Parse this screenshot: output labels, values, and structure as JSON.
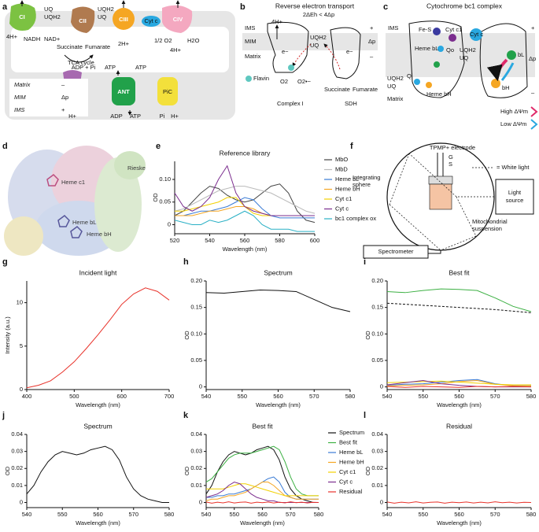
{
  "panel_labels": [
    "a",
    "b",
    "c",
    "d",
    "e",
    "f",
    "g",
    "h",
    "i",
    "j",
    "k",
    "l"
  ],
  "panel_a": {
    "texts": [
      "CI",
      "CII",
      "CIII",
      "CIV",
      "Cyt c",
      "UQ",
      "UQH2",
      "UQH2",
      "UQ",
      "4H+",
      "NADH",
      "NAD+",
      "Succinate",
      "Fumarate",
      "TCA cycle",
      "2H+",
      "1/2 O2",
      "H2O",
      "4H+",
      "ADP + Pi",
      "ATP",
      "ATP",
      "FoF1",
      "ANT",
      "PiC",
      "H+",
      "ADP",
      "ATP",
      "Pi",
      "H+",
      "Matrix",
      "MIM",
      "IMS",
      "–",
      "Δp",
      "+"
    ]
  },
  "panel_b": {
    "texts": [
      "Reverse electron transport",
      "2ΔEh < 4Δp",
      "IMS",
      "MIM",
      "Matrix",
      "4H+",
      "UQH2",
      "UQ",
      "e−",
      "e−",
      "O2",
      "O2•−",
      "Flavin",
      "Succinate",
      "Fumarate",
      "Complex I",
      "SDH",
      "+",
      "Δp",
      "–"
    ]
  },
  "panel_c": {
    "texts": [
      "Cytochrome bc1 complex",
      "IMS",
      "Fe-S",
      "Cyt c1",
      "Cyt c",
      "Heme bL",
      "Qo",
      "UQH2",
      "UQ",
      "UQH2",
      "UQ",
      "Qi",
      "Heme bH",
      "Matrix",
      "bL",
      "bH",
      "+",
      "Δp",
      "–",
      "High ΔΨm",
      "Low ΔΨm"
    ]
  },
  "panel_d": {
    "texts": [
      "Rieske",
      "Heme c1",
      "Heme bL",
      "Heme bH"
    ]
  },
  "panel_f": {
    "texts": [
      "TPMP+ electrode",
      "G",
      "S",
      "= White light",
      "Integrating",
      "sphere",
      "Light",
      "source",
      "Mitochondrial",
      "suspension",
      "Spectrometer"
    ]
  },
  "chart_data": [
    {
      "type": "line",
      "title": "Reference library",
      "xlabel": "Wavelength (nm)",
      "ylabel": "OD",
      "x": [
        520,
        525,
        530,
        535,
        540,
        545,
        550,
        555,
        560,
        565,
        570,
        575,
        580,
        585,
        590,
        595,
        600
      ],
      "xlim": [
        520,
        600
      ],
      "xticks": [
        520,
        540,
        560,
        580,
        600
      ],
      "ylim": [
        -0.02,
        0.14
      ],
      "yticks": [
        0,
        0.05,
        {
          "value": 0.1,
          "label": "0.10"
        }
      ],
      "legend": "right",
      "series": [
        {
          "name": "MbO",
          "color": "#444444",
          "values": [
            0.02,
            0.03,
            0.05,
            0.07,
            0.085,
            0.08,
            0.065,
            0.055,
            0.05,
            0.055,
            0.07,
            0.085,
            0.09,
            0.07,
            0.03,
            0.01,
            0.005
          ]
        },
        {
          "name": "MbD",
          "color": "#bbbbbb",
          "values": [
            0.03,
            0.035,
            0.045,
            0.055,
            0.065,
            0.075,
            0.08,
            0.085,
            0.085,
            0.08,
            0.075,
            0.07,
            0.06,
            0.05,
            0.04,
            0.03,
            0.025
          ]
        },
        {
          "name": "Heme bL",
          "color": "#3a7bd5",
          "values": [
            0.02,
            0.02,
            0.025,
            0.03,
            0.03,
            0.035,
            0.04,
            0.05,
            0.06,
            0.055,
            0.035,
            0.02,
            0.015,
            0.015,
            0.015,
            0.015,
            0.015
          ]
        },
        {
          "name": "Heme bH",
          "color": "#f5a623",
          "values": [
            0.02,
            0.02,
            0.02,
            0.025,
            0.03,
            0.03,
            0.035,
            0.04,
            0.04,
            0.035,
            0.025,
            0.02,
            0.02,
            0.02,
            0.02,
            0.02,
            0.02
          ]
        },
        {
          "name": "Cyt c1",
          "color": "#f2d000",
          "values": [
            0.03,
            0.03,
            0.035,
            0.04,
            0.045,
            0.05,
            0.06,
            0.06,
            0.04,
            0.025,
            0.02,
            0.02,
            0.02,
            0.02,
            0.02,
            0.02,
            0.02
          ]
        },
        {
          "name": "Cyt c",
          "color": "#7b2d8e",
          "values": [
            0.07,
            0.04,
            0.03,
            0.04,
            0.06,
            0.1,
            0.13,
            0.07,
            0.04,
            0.03,
            0.025,
            0.02,
            0.02,
            0.02,
            0.02,
            0.02,
            0.02
          ]
        },
        {
          "name": "bc1 complex ox",
          "color": "#2ab0c5",
          "values": [
            0.01,
            0.005,
            0,
            0,
            0.01,
            0.005,
            0.01,
            0.02,
            0.03,
            0.02,
            0,
            -0.01,
            -0.01,
            -0.01,
            -0.015,
            -0.015,
            -0.015
          ]
        }
      ]
    },
    {
      "type": "line",
      "title": "Incident light",
      "xlabel": "Wavelength (nm)",
      "ylabel": "Intensity (a.u.)",
      "x": [
        400,
        425,
        450,
        475,
        500,
        525,
        550,
        575,
        600,
        625,
        650,
        675,
        700
      ],
      "xlim": [
        400,
        700
      ],
      "xticks": [
        400,
        500,
        600,
        700
      ],
      "ylim": [
        0,
        12.5
      ],
      "yticks": [
        0,
        5,
        10
      ],
      "series": [
        {
          "color": "#e8322a",
          "values": [
            0.2,
            0.5,
            1,
            2,
            3.2,
            4.7,
            6.3,
            8,
            9.8,
            11,
            11.7,
            11.3,
            10.3
          ]
        }
      ]
    },
    {
      "type": "line",
      "title": "Spectrum",
      "xlabel": "Wavelength (nm)",
      "ylabel": "OD",
      "x": [
        540,
        545,
        550,
        555,
        560,
        565,
        570,
        575,
        580
      ],
      "xlim": [
        540,
        580
      ],
      "xticks": [
        540,
        550,
        560,
        570,
        580
      ],
      "ylim": [
        -0.005,
        0.2
      ],
      "yticks": [
        0,
        0.05,
        {
          "value": 0.1,
          "label": "0.10"
        },
        0.15,
        {
          "value": 0.2,
          "label": "0.20"
        }
      ],
      "series": [
        {
          "color": "#111111",
          "values": [
            0.178,
            0.177,
            0.18,
            0.183,
            0.182,
            0.18,
            0.165,
            0.15,
            0.142
          ]
        }
      ]
    },
    {
      "type": "line",
      "title": "Best fit",
      "xlabel": "Wavelength (nm)",
      "ylabel": "OD",
      "x": [
        540,
        545,
        550,
        555,
        560,
        565,
        570,
        575,
        580
      ],
      "xlim": [
        540,
        580
      ],
      "xticks": [
        540,
        550,
        560,
        570,
        580
      ],
      "ylim": [
        -0.005,
        0.2
      ],
      "yticks": [
        0,
        0.05,
        {
          "value": 0.1,
          "label": "0.10"
        },
        0.15,
        {
          "value": 0.2,
          "label": "0.20"
        }
      ],
      "series": [
        {
          "color": "#3cb043",
          "values": [
            0.18,
            0.178,
            0.182,
            0.185,
            0.184,
            0.182,
            0.168,
            0.152,
            0.142
          ]
        },
        {
          "color": "#111111",
          "dash": true,
          "values": [
            0.158,
            0.156,
            0.154,
            0.152,
            0.15,
            0.148,
            0.146,
            0.143,
            0.14
          ]
        },
        {
          "color": "#3a7bd5",
          "values": [
            0.003,
            0.005,
            0.006,
            0.009,
            0.012,
            0.014,
            0.006,
            0.002,
            0.002
          ]
        },
        {
          "color": "#f5a623",
          "values": [
            0.002,
            0.003,
            0.004,
            0.006,
            0.01,
            0.012,
            0.005,
            0.002,
            0.002
          ]
        },
        {
          "color": "#f2d000",
          "values": [
            0.008,
            0.009,
            0.01,
            0.011,
            0.009,
            0.007,
            0.005,
            0.004,
            0.004
          ]
        },
        {
          "color": "#7b2d8e",
          "values": [
            0.004,
            0.008,
            0.012,
            0.006,
            0.003,
            0.001,
            0,
            0,
            0
          ]
        },
        {
          "color": "#e8322a",
          "values": [
            0.001,
            -0.001,
            0.001,
            0,
            -0.001,
            0.001,
            0,
            0.001,
            0
          ]
        }
      ]
    },
    {
      "type": "line",
      "title": "Spectrum",
      "xlabel": "Wavelength (nm)",
      "ylabel": "OD",
      "x": [
        540,
        542,
        544,
        546,
        548,
        550,
        552,
        554,
        556,
        558,
        560,
        562,
        564,
        566,
        568,
        570,
        572,
        574,
        576,
        578,
        580
      ],
      "xlim": [
        540,
        580
      ],
      "xticks": [
        540,
        550,
        560,
        570,
        580
      ],
      "ylim": [
        -0.003,
        0.04
      ],
      "yticks": [
        0,
        0.01,
        0.02,
        0.03,
        0.04
      ],
      "series": [
        {
          "color": "#111111",
          "values": [
            0.005,
            0.01,
            0.018,
            0.024,
            0.028,
            0.03,
            0.029,
            0.028,
            0.029,
            0.031,
            0.032,
            0.033,
            0.031,
            0.025,
            0.015,
            0.008,
            0.004,
            0.002,
            0.001,
            0,
            0
          ]
        }
      ]
    },
    {
      "type": "line",
      "title": "Best fit",
      "xlabel": "Wavelength (nm)",
      "ylabel": "OD",
      "x": [
        540,
        542,
        544,
        546,
        548,
        550,
        552,
        554,
        556,
        558,
        560,
        562,
        564,
        566,
        568,
        570,
        572,
        574,
        576,
        578,
        580
      ],
      "xlim": [
        540,
        580
      ],
      "xticks": [
        540,
        550,
        560,
        570,
        580
      ],
      "ylim": [
        -0.003,
        0.04
      ],
      "yticks": [
        0,
        0.01,
        0.02,
        0.03,
        0.04
      ],
      "legend": "right",
      "series": [
        {
          "name": "Spectrum",
          "color": "#111111",
          "values": [
            0.005,
            0.01,
            0.018,
            0.024,
            0.028,
            0.03,
            0.029,
            0.028,
            0.029,
            0.031,
            0.032,
            0.033,
            0.031,
            0.025,
            0.015,
            0.008,
            0.004,
            0.002,
            0.001,
            0,
            0
          ]
        },
        {
          "name": "Best fit",
          "color": "#3cb043",
          "values": [
            0.012,
            0.014,
            0.018,
            0.022,
            0.026,
            0.028,
            0.029,
            0.029,
            0.029,
            0.03,
            0.031,
            0.032,
            0.033,
            0.031,
            0.024,
            0.015,
            0.008,
            0.005,
            0.004,
            0.004,
            0.004
          ]
        },
        {
          "name": "Heme bL",
          "color": "#3a7bd5",
          "values": [
            0.003,
            0.003,
            0.004,
            0.004,
            0.005,
            0.005,
            0.006,
            0.007,
            0.008,
            0.01,
            0.012,
            0.014,
            0.015,
            0.012,
            0.006,
            0.003,
            0.002,
            0.002,
            0.002,
            0.002,
            0.002
          ]
        },
        {
          "name": "Heme bH",
          "color": "#f5a623",
          "values": [
            0.001,
            0.002,
            0.002,
            0.003,
            0.004,
            0.004,
            0.005,
            0.006,
            0.008,
            0.01,
            0.012,
            0.012,
            0.01,
            0.007,
            0.004,
            0.003,
            0.002,
            0.002,
            0.002,
            0.002,
            0.002
          ]
        },
        {
          "name": "Cyt c1",
          "color": "#f2d000",
          "values": [
            0.008,
            0.008,
            0.008,
            0.008,
            0.009,
            0.01,
            0.011,
            0.011,
            0.01,
            0.009,
            0.008,
            0.007,
            0.006,
            0.005,
            0.004,
            0.004,
            0.004,
            0.004,
            0.004,
            0.004,
            0.004
          ]
        },
        {
          "name": "Cyt c",
          "color": "#7b2d8e",
          "values": [
            0.003,
            0.004,
            0.005,
            0.007,
            0.01,
            0.012,
            0.011,
            0.008,
            0.005,
            0.003,
            0.002,
            0.001,
            0.001,
            0,
            0,
            0,
            0,
            0,
            0,
            0,
            0
          ]
        },
        {
          "name": "Residual",
          "color": "#e8322a",
          "values": [
            0.0003,
            -0.0004,
            0.0002,
            -0.0002,
            0.0004,
            -0.0003,
            0.0001,
            0.0003,
            -0.0004,
            0.0002,
            -0.0001,
            0.0003,
            -0.0003,
            0.0002,
            -0.0002,
            0.0004,
            -0.0001,
            0.0002,
            -0.0003,
            0.0001,
            0
          ]
        }
      ]
    },
    {
      "type": "line",
      "title": "Residual",
      "xlabel": "Wavelength (nm)",
      "ylabel": "OD",
      "x": [
        540,
        542,
        544,
        546,
        548,
        550,
        552,
        554,
        556,
        558,
        560,
        562,
        564,
        566,
        568,
        570,
        572,
        574,
        576,
        578,
        580
      ],
      "xlim": [
        540,
        580
      ],
      "xticks": [
        540,
        550,
        560,
        570,
        580
      ],
      "ylim": [
        -0.003,
        0.04
      ],
      "yticks": [
        0,
        0.01,
        0.02,
        0.03,
        0.04
      ],
      "series": [
        {
          "color": "#e8322a",
          "values": [
            0.0003,
            -0.0004,
            0.0002,
            -0.0002,
            0.0004,
            -0.0003,
            0.0001,
            0.0003,
            -0.0004,
            0.0002,
            -0.0001,
            0.0003,
            -0.0003,
            0.0002,
            -0.0002,
            0.0004,
            -0.0001,
            0.0002,
            -0.0003,
            0.0001,
            0
          ]
        }
      ]
    }
  ]
}
